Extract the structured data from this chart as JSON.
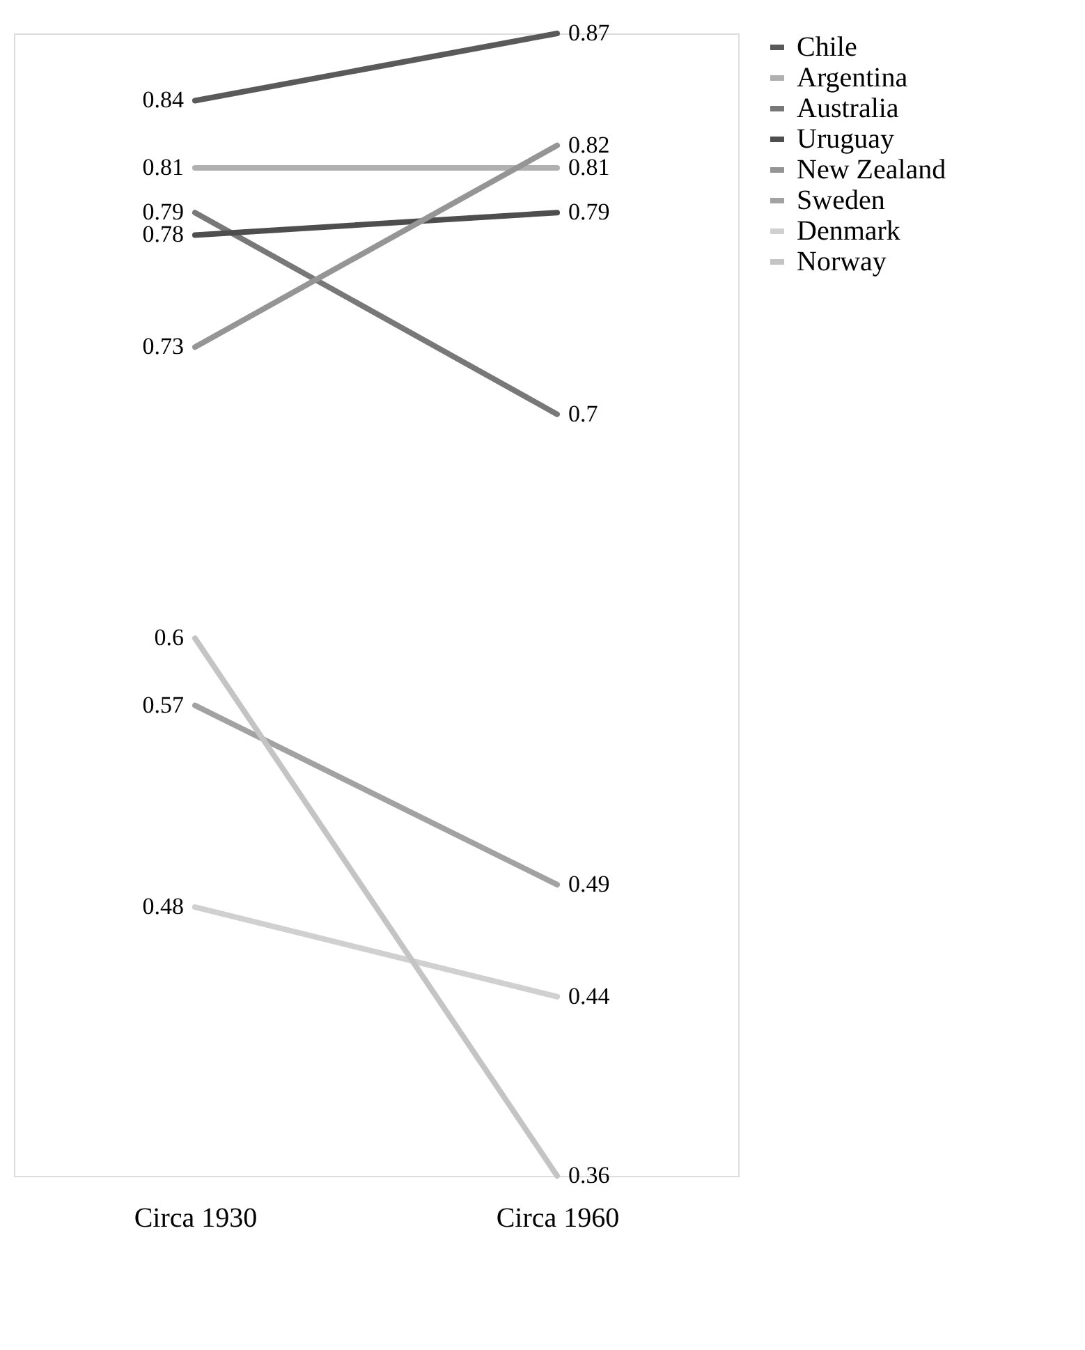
{
  "chart_data": {
    "type": "line",
    "categories": [
      "Circa 1930",
      "Circa 1960"
    ],
    "series": [
      {
        "name": "Chile",
        "color": "#5a5a5a",
        "values": [
          0.84,
          0.87
        ]
      },
      {
        "name": "Argentina",
        "color": "#b0b0b0",
        "values": [
          0.81,
          0.81
        ]
      },
      {
        "name": "Australia",
        "color": "#787878",
        "values": [
          0.79,
          0.7
        ]
      },
      {
        "name": "Uruguay",
        "color": "#4e4e4e",
        "values": [
          0.78,
          0.79
        ]
      },
      {
        "name": "New Zealand",
        "color": "#959595",
        "values": [
          0.73,
          0.82
        ]
      },
      {
        "name": "Sweden",
        "color": "#a2a2a2",
        "values": [
          0.57,
          0.49
        ]
      },
      {
        "name": "Denmark",
        "color": "#d0d0d0",
        "values": [
          0.48,
          0.44
        ]
      },
      {
        "name": "Norway",
        "color": "#c4c4c4",
        "values": [
          0.6,
          0.36
        ]
      }
    ],
    "data_labels": true,
    "legend": "right",
    "line_style": "solid"
  }
}
